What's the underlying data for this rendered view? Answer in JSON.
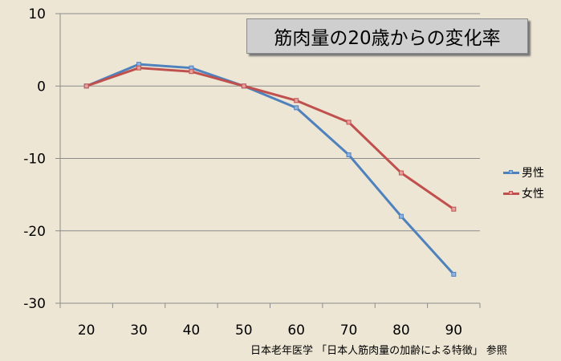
{
  "chart_data": {
    "type": "line",
    "title": "筋肉量の20歳からの変化率",
    "x": [
      20,
      30,
      40,
      50,
      60,
      70,
      80,
      90
    ],
    "categories": [
      "20",
      "30",
      "40",
      "50",
      "60",
      "70",
      "80",
      "90"
    ],
    "ylim": [
      -30,
      10
    ],
    "yticks": [
      10,
      0,
      -10,
      -20,
      -30
    ],
    "ytick_labels": [
      "10",
      "0",
      "-10",
      "-20",
      "-30"
    ],
    "grid": true,
    "legend_position": "right",
    "series": [
      {
        "name": "男性",
        "color": "#4f81bd",
        "values": [
          0,
          3,
          2.5,
          0,
          -3,
          -9.5,
          -18,
          -26
        ]
      },
      {
        "name": "女性",
        "color": "#c0504d",
        "values": [
          0,
          2.5,
          2,
          0,
          -2,
          -5,
          -12,
          -17
        ]
      }
    ],
    "source": "日本老年医学 「日本人筋肉量の加齢による特徴」 参照"
  }
}
